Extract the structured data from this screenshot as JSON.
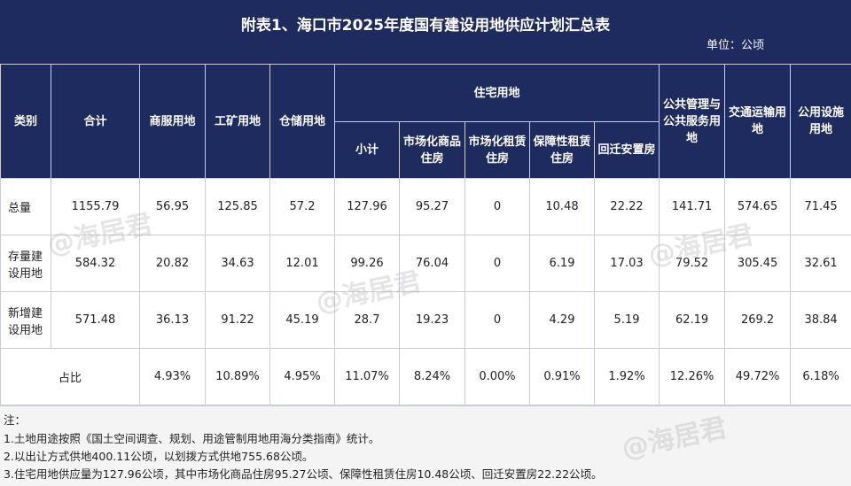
{
  "title": "附表1、海口市2025年度国有建设用地供应计划汇总表",
  "unit": "单位：公顷",
  "headers": {
    "category": "类别",
    "total": "合计",
    "commercial": "商服用地",
    "industrial": "工矿用地",
    "storage": "仓储用地",
    "residential": "住宅用地",
    "subtotal": "小计",
    "market_housing": "市场化商品住房",
    "market_rental": "市场化租赁住房",
    "affordable_rental": "保障性租赁住房",
    "resettlement": "回迁安置房",
    "public_service": "公共管理与公共服务用地",
    "transport": "交通运输用地",
    "utilities": "公用设施用地"
  },
  "rows": [
    {
      "label": "总量",
      "values": [
        "1155.79",
        "56.95",
        "125.85",
        "57.2",
        "127.96",
        "95.27",
        "0",
        "10.48",
        "22.22",
        "141.71",
        "574.65",
        "71.45"
      ]
    },
    {
      "label": "存量建设用地",
      "values": [
        "584.32",
        "20.82",
        "34.63",
        "12.01",
        "99.26",
        "76.04",
        "0",
        "6.19",
        "17.03",
        "79.52",
        "305.45",
        "32.61"
      ]
    },
    {
      "label": "新增建设用地",
      "values": [
        "571.48",
        "36.13",
        "91.22",
        "45.19",
        "28.7",
        "19.23",
        "0",
        "4.29",
        "5.19",
        "62.19",
        "269.2",
        "38.84"
      ]
    }
  ],
  "ratio": {
    "label": "占比",
    "values": [
      "4.93%",
      "10.89%",
      "4.95%",
      "11.07%",
      "8.24%",
      "0.00%",
      "0.91%",
      "1.92%",
      "12.26%",
      "49.72%",
      "6.18%"
    ]
  },
  "notes": [
    "注：",
    "1.土地用途按照《国土空间调查、规划、用途管制用地用海分类指南》统计。",
    "2.以出让方式供地400.11公顷，以划拨方式供地755.68公顷。",
    "3.住宅用地供应量为127.96公顷，其中市场化商品住房95.27公顷、保障性租赁住房10.48公顷、回迁安置房22.22公顷。"
  ],
  "watermark": "@海居君",
  "colors": {
    "header_bg": "#1d2b5f",
    "note_bg": "#f4f4f4"
  }
}
